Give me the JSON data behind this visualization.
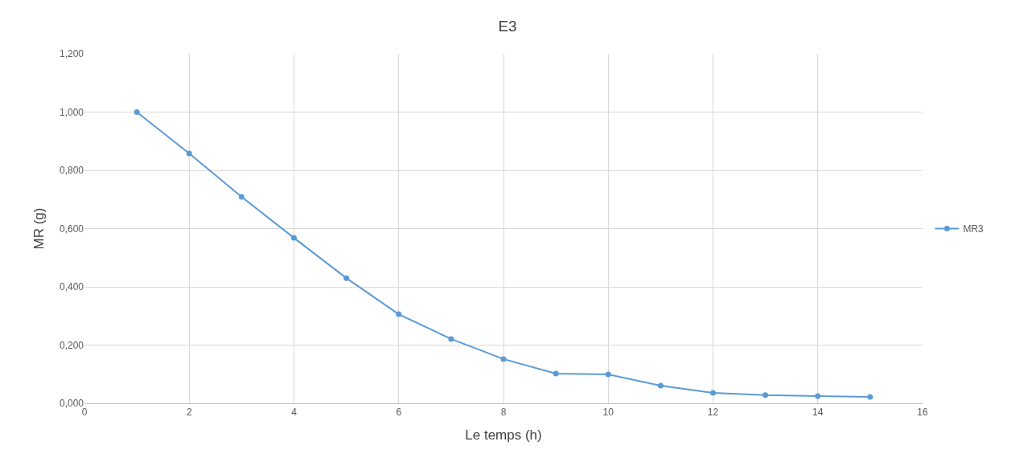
{
  "chart_data": {
    "type": "line",
    "title": "E3",
    "xlabel": "Le temps (h)",
    "ylabel": "MR (g)",
    "x": [
      1,
      2,
      3,
      4,
      5,
      6,
      7,
      8,
      9,
      10,
      11,
      12,
      13,
      14,
      15
    ],
    "series": [
      {
        "name": "MR3",
        "color": "#5b9bd5",
        "values": [
          1.0,
          0.858,
          0.709,
          0.568,
          0.43,
          0.306,
          0.221,
          0.152,
          0.102,
          0.099,
          0.061,
          0.036,
          0.028,
          0.025,
          0.022
        ]
      }
    ],
    "xlim": [
      0,
      16
    ],
    "xticks": [
      0,
      2,
      4,
      6,
      8,
      10,
      12,
      14,
      16
    ],
    "ylim": [
      0,
      1.2
    ],
    "yticks": [
      {
        "value": 0,
        "label": "0,000"
      },
      {
        "value": 0.2,
        "label": "0,200"
      },
      {
        "value": 0.4,
        "label": "0,400"
      },
      {
        "value": 0.6,
        "label": "0,600"
      },
      {
        "value": 0.8,
        "label": "0,800"
      },
      {
        "value": 1.0,
        "label": "1,000"
      },
      {
        "value": 1.2,
        "label": "1,200"
      }
    ],
    "grid": true,
    "legend": "right",
    "marker": "circle",
    "line_style": "solid"
  }
}
